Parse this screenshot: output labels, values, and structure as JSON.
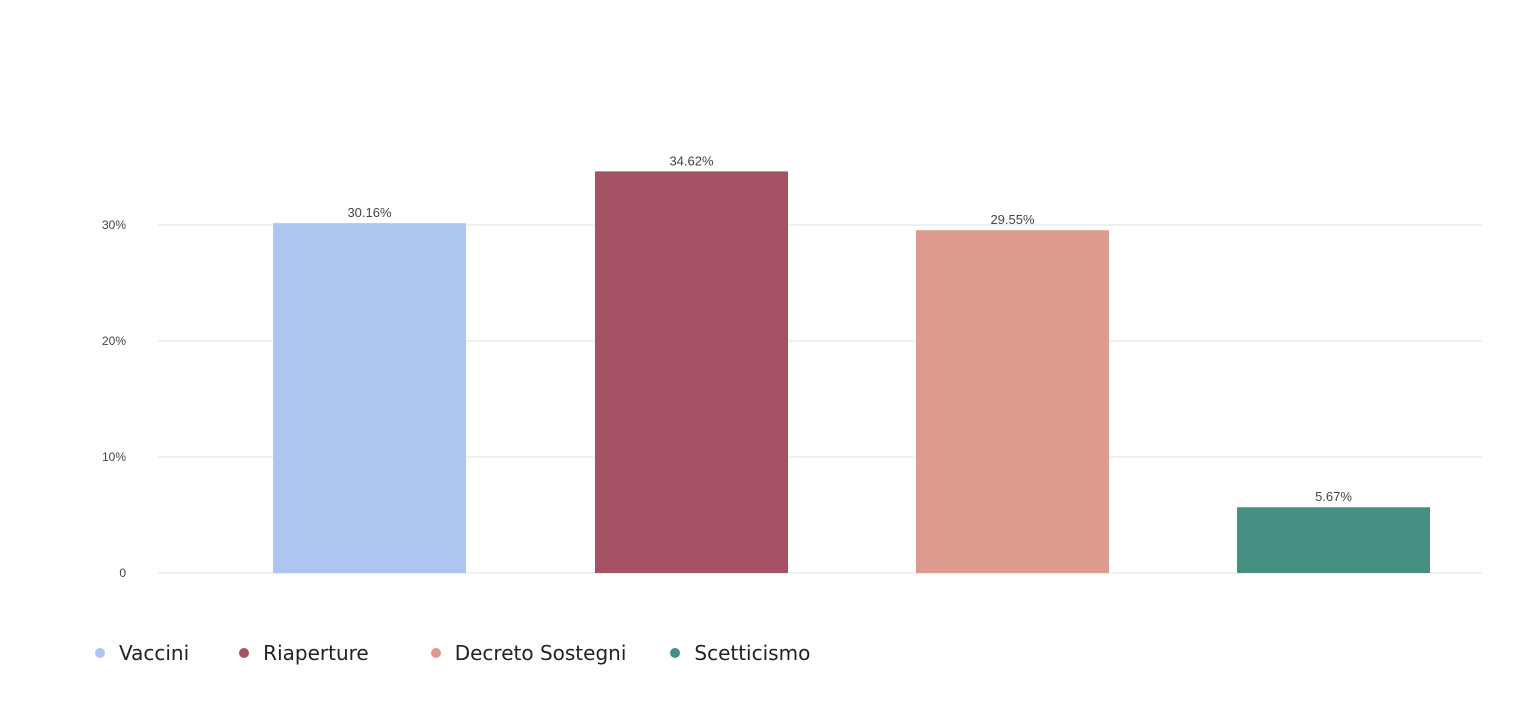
{
  "chart_data": {
    "type": "bar",
    "categories": [
      "Vaccini",
      "Riaperture",
      "Decreto Sostegni",
      "Scetticismo"
    ],
    "values": [
      30.16,
      34.62,
      29.55,
      5.67
    ],
    "value_labels": [
      "30.16%",
      "34.62%",
      "29.55%",
      "5.67%"
    ],
    "colors": [
      "#aec6ef",
      "#a55164",
      "#dd9a8e",
      "#488f83"
    ],
    "y_ticks": [
      0,
      10,
      20,
      30
    ],
    "y_tick_labels": [
      "0",
      "10%",
      "20%",
      "30%"
    ],
    "ylim": [
      0,
      40
    ],
    "grid": true,
    "legend_position": "bottom-left"
  },
  "legend": {
    "items": [
      {
        "label": "Vaccini",
        "color": "#aec6ef"
      },
      {
        "label": "Riaperture",
        "color": "#a55164"
      },
      {
        "label": "Decreto Sostegni",
        "color": "#dd9a8e"
      },
      {
        "label": "Scetticismo",
        "color": "#488f83"
      }
    ]
  }
}
